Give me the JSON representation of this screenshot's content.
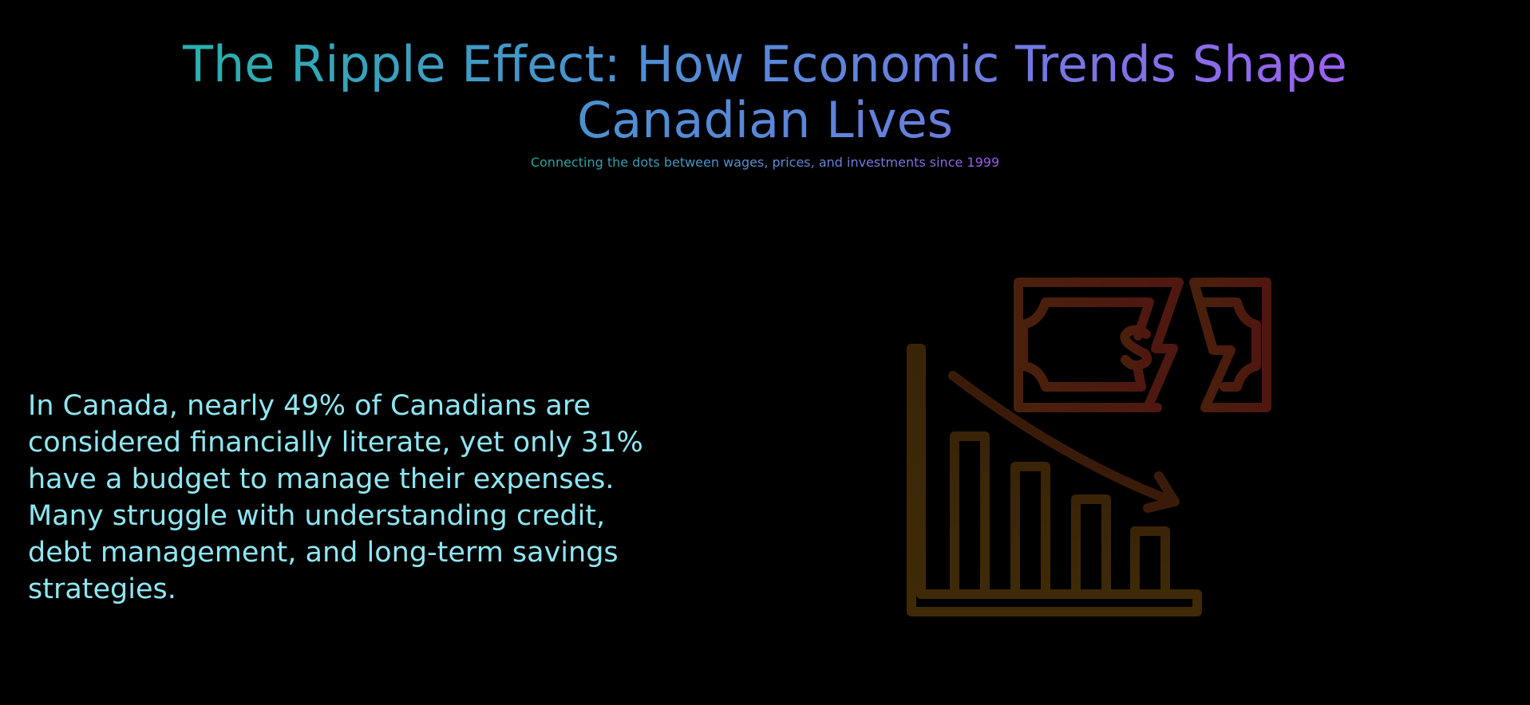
{
  "header": {
    "title": "The Ripple Effect: How Economic Trends Shape Canadian Lives",
    "subtitle": "Connecting the dots between wages, prices, and investments since 1999"
  },
  "main": {
    "statement": "In Canada, nearly 49% of Canadians are considered financially literate, yet only 31% have a budget to manage their expenses. Many struggle with understanding credit, debt management, and long-term savings strategies."
  },
  "illustration": {
    "icon": "falling-money-chart-icon",
    "colors": {
      "money": "#4a1a0d",
      "chart": "#3d2608",
      "arrow": "#3a1a0a"
    }
  }
}
